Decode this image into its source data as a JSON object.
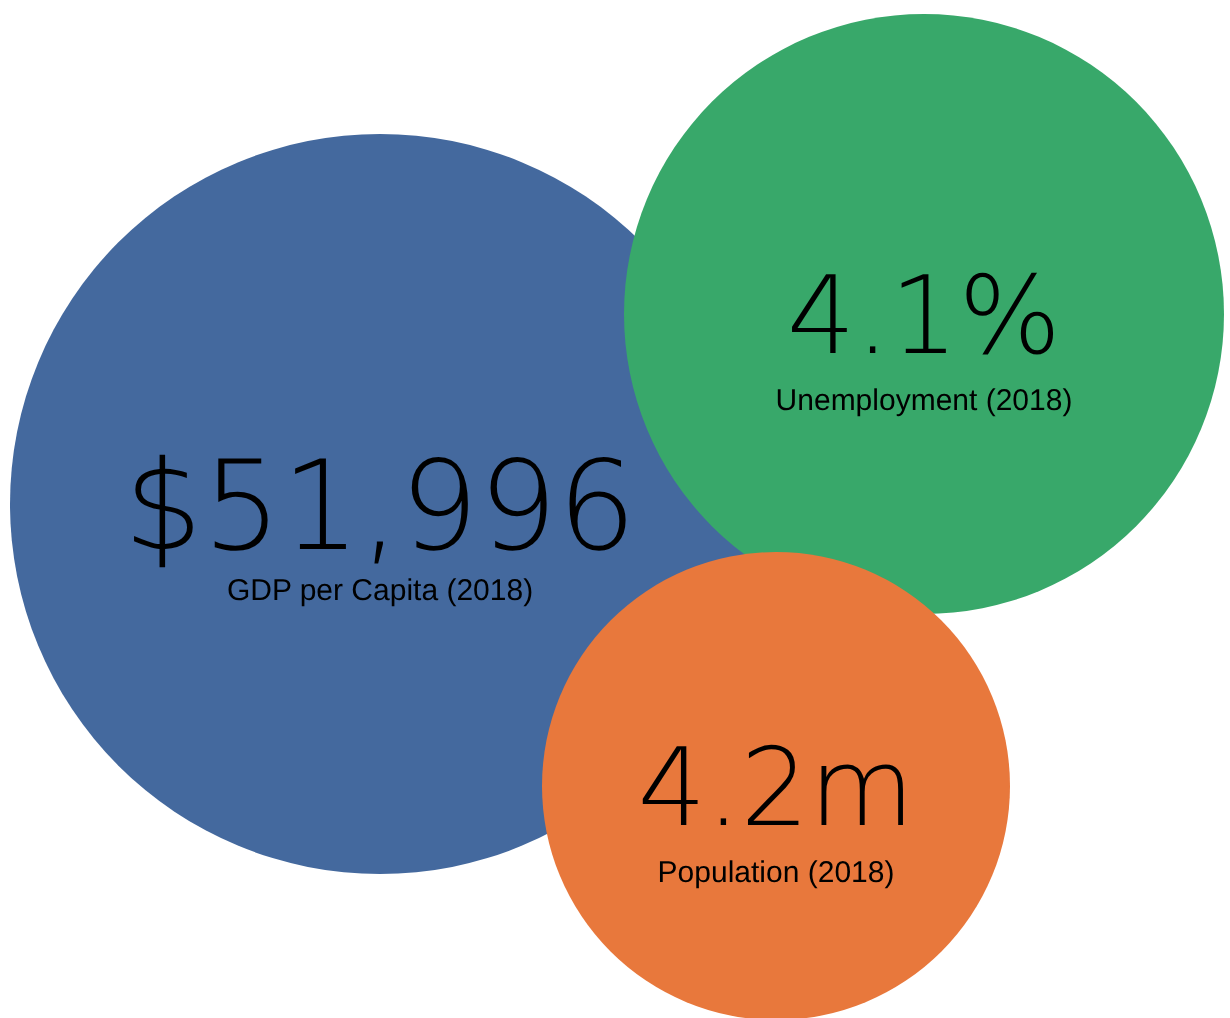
{
  "chart_data": {
    "type": "other",
    "categories": [
      "GDP per Capita (2018)",
      "Unemployment (2018)",
      "Population (2018)"
    ],
    "values": [
      51996,
      4.1,
      4.2
    ],
    "value_labels": [
      "$51,996",
      "4.1%",
      "4.2m"
    ],
    "colors": [
      "#44699e",
      "#38a86a",
      "#e8783c"
    ]
  }
}
